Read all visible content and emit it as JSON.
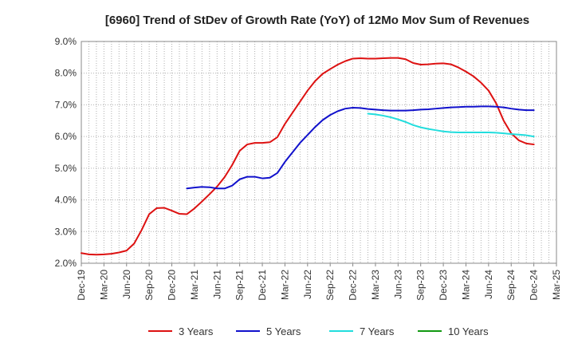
{
  "chart_data": {
    "type": "line",
    "title": "[6960]  Trend of StDev of Growth Rate (YoY) of 12Mo Mov Sum of Revenues",
    "xlabel": "",
    "ylabel": "",
    "x_ticks": [
      "Dec-19",
      "Mar-20",
      "Jun-20",
      "Sep-20",
      "Dec-20",
      "Mar-21",
      "Jun-21",
      "Sep-21",
      "Dec-21",
      "Mar-22",
      "Jun-22",
      "Sep-22",
      "Dec-22",
      "Mar-23",
      "Jun-23",
      "Sep-23",
      "Dec-23",
      "Mar-24",
      "Jun-24",
      "Sep-24",
      "Dec-24",
      "Mar-25"
    ],
    "y_ticks": [
      "2.0%",
      "3.0%",
      "4.0%",
      "5.0%",
      "6.0%",
      "7.0%",
      "8.0%",
      "9.0%"
    ],
    "ylim": [
      2.0,
      9.0
    ],
    "x_unit": "months since Dec-19",
    "xlim": [
      0,
      63
    ],
    "grid": true,
    "legend_position": "bottom",
    "series": [
      {
        "name": "3 Years",
        "color": "#dd1111",
        "x": [
          0,
          1,
          2,
          3,
          4,
          5,
          6,
          7,
          8,
          9,
          10,
          11,
          12,
          13,
          14,
          15,
          16,
          17,
          18,
          19,
          20,
          21,
          22,
          23,
          24,
          25,
          26,
          27,
          28,
          29,
          30,
          31,
          32,
          33,
          34,
          35,
          36,
          37,
          38,
          39,
          40,
          41,
          42,
          43,
          44,
          45,
          46,
          47,
          48,
          49,
          50,
          51,
          52,
          53,
          54,
          55,
          56,
          57,
          58,
          59,
          60
        ],
        "values": [
          2.32,
          2.28,
          2.27,
          2.28,
          2.3,
          2.34,
          2.4,
          2.62,
          3.05,
          3.55,
          3.74,
          3.75,
          3.66,
          3.56,
          3.55,
          3.73,
          3.95,
          4.18,
          4.42,
          4.72,
          5.1,
          5.55,
          5.75,
          5.8,
          5.8,
          5.82,
          5.98,
          6.4,
          6.75,
          7.1,
          7.45,
          7.75,
          7.98,
          8.13,
          8.27,
          8.38,
          8.46,
          8.47,
          8.46,
          8.46,
          8.47,
          8.48,
          8.48,
          8.44,
          8.32,
          8.27,
          8.28,
          8.3,
          8.31,
          8.28,
          8.18,
          8.05,
          7.9,
          7.7,
          7.45,
          7.05,
          6.5,
          6.1,
          5.88,
          5.78,
          5.75
        ]
      },
      {
        "name": "5 Years",
        "color": "#1111cc",
        "x": [
          14,
          15,
          16,
          17,
          18,
          19,
          20,
          21,
          22,
          23,
          24,
          25,
          26,
          27,
          28,
          29,
          30,
          31,
          32,
          33,
          34,
          35,
          36,
          37,
          38,
          39,
          40,
          41,
          42,
          43,
          44,
          45,
          46,
          47,
          48,
          49,
          50,
          51,
          52,
          53,
          54,
          55,
          56,
          57,
          58,
          59,
          60
        ],
        "values": [
          4.36,
          4.39,
          4.41,
          4.4,
          4.36,
          4.36,
          4.45,
          4.65,
          4.73,
          4.73,
          4.68,
          4.7,
          4.85,
          5.2,
          5.5,
          5.8,
          6.05,
          6.3,
          6.52,
          6.68,
          6.8,
          6.88,
          6.91,
          6.9,
          6.87,
          6.85,
          6.83,
          6.82,
          6.82,
          6.82,
          6.83,
          6.85,
          6.86,
          6.88,
          6.9,
          6.92,
          6.93,
          6.94,
          6.94,
          6.95,
          6.95,
          6.94,
          6.92,
          6.88,
          6.85,
          6.83,
          6.83
        ]
      },
      {
        "name": "7 Years",
        "color": "#22dddd",
        "x": [
          38,
          39,
          40,
          41,
          42,
          43,
          44,
          45,
          46,
          47,
          48,
          49,
          50,
          51,
          52,
          53,
          54,
          55,
          56,
          57,
          58,
          59,
          60
        ],
        "values": [
          6.72,
          6.7,
          6.66,
          6.61,
          6.54,
          6.46,
          6.36,
          6.29,
          6.24,
          6.2,
          6.16,
          6.14,
          6.13,
          6.13,
          6.13,
          6.13,
          6.13,
          6.12,
          6.1,
          6.08,
          6.06,
          6.04,
          6.0
        ]
      },
      {
        "name": "10 Years",
        "color": "#119911",
        "x": [],
        "values": []
      }
    ]
  }
}
